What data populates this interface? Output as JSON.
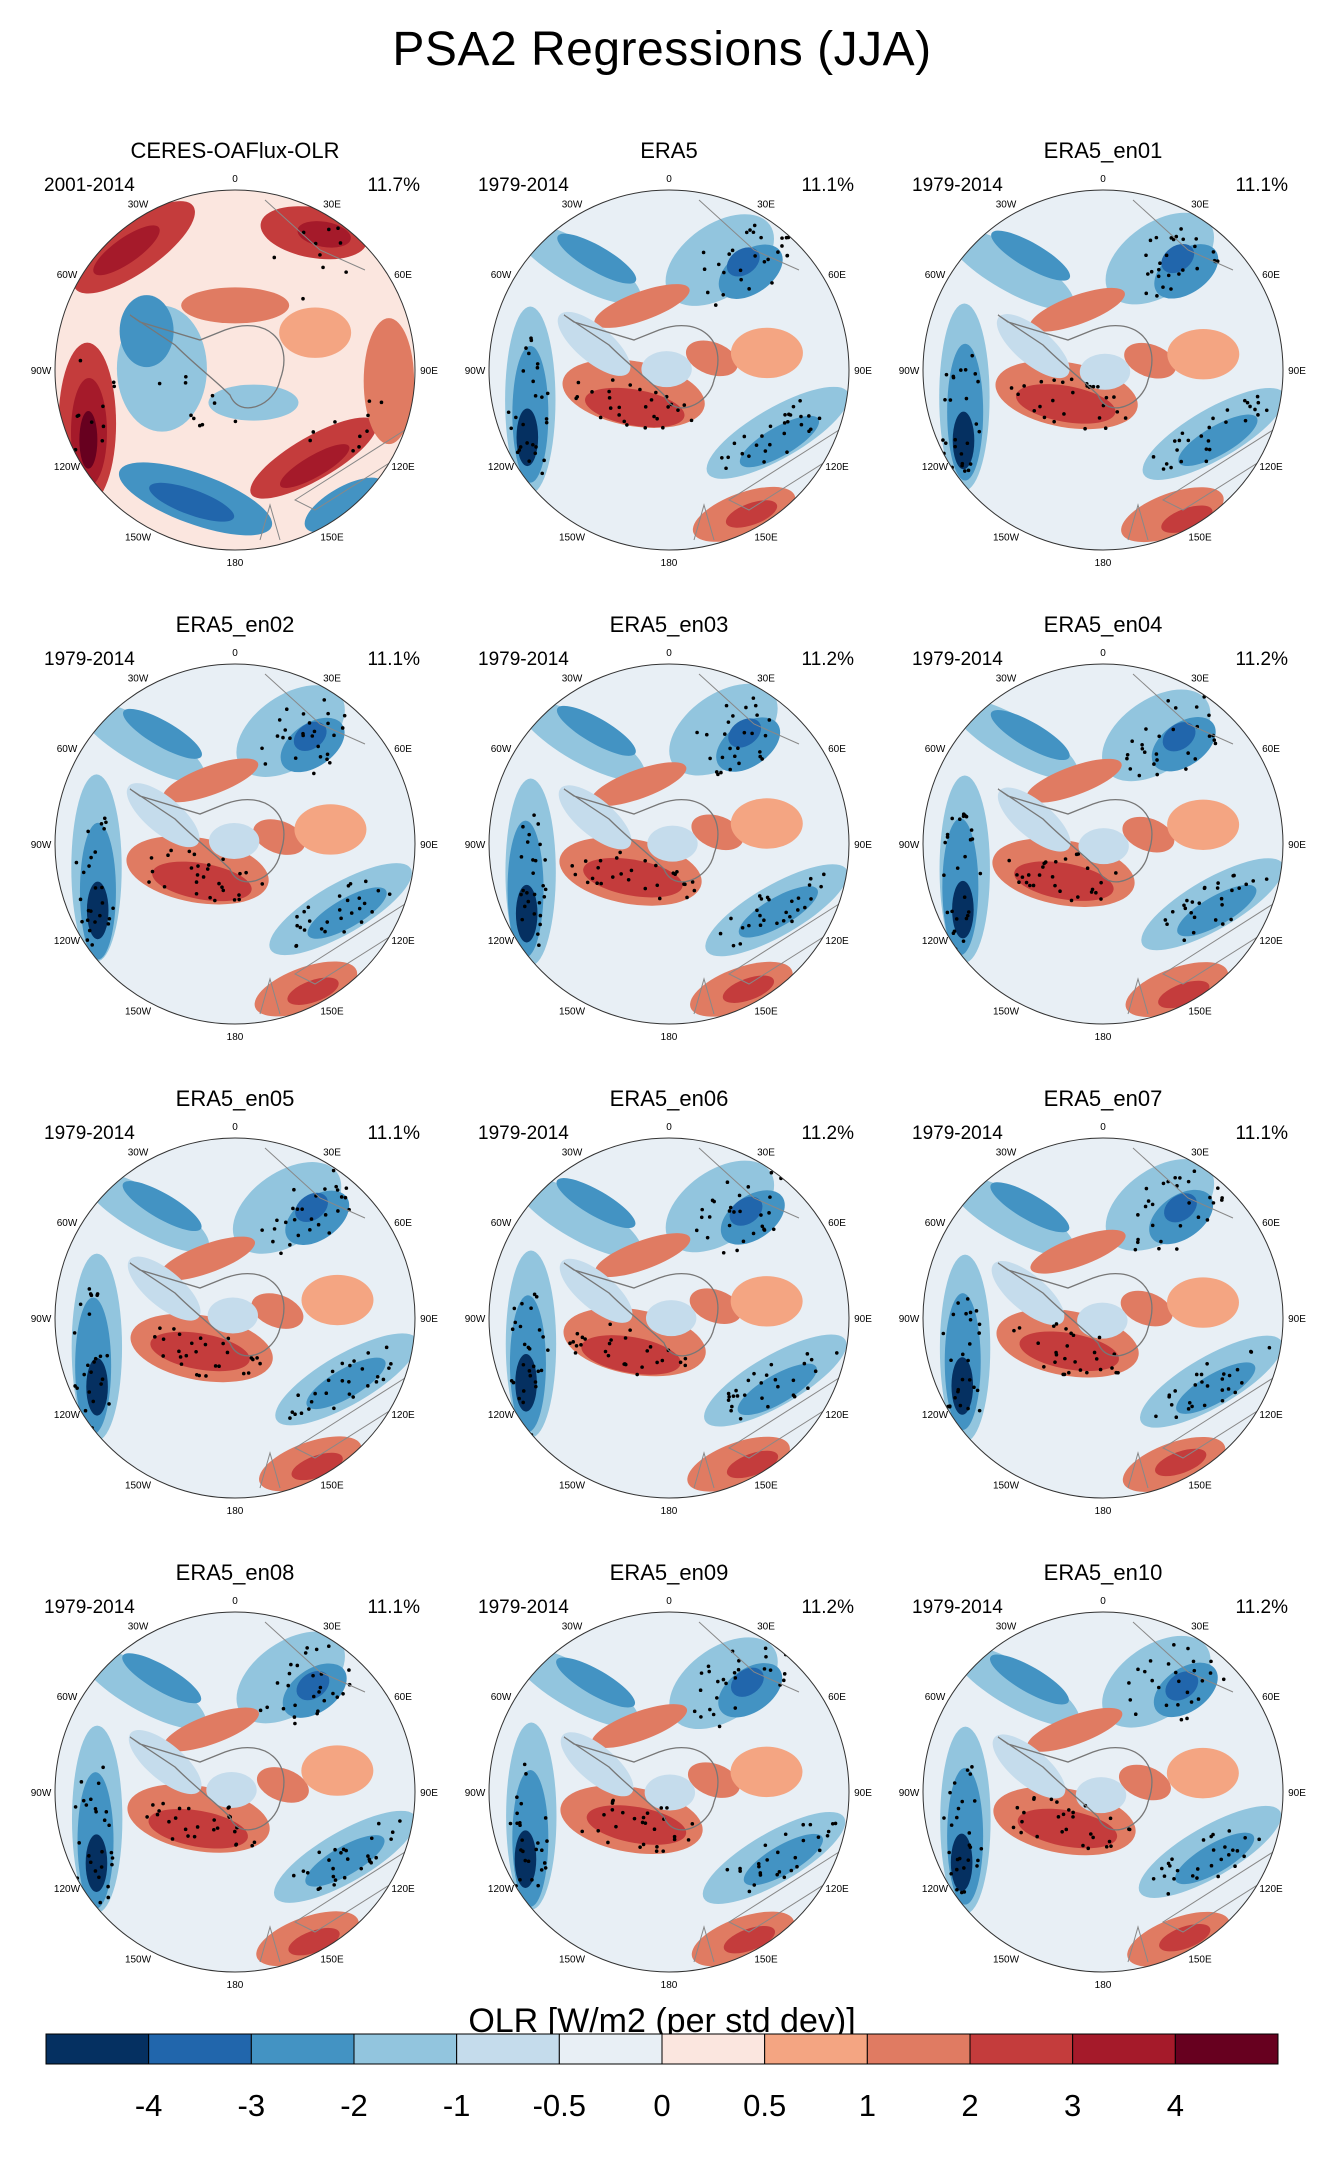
{
  "title": "PSA2 Regressions (JJA)",
  "lon_labels": [
    "0",
    "30E",
    "60E",
    "90E",
    "120E",
    "150E",
    "180",
    "150W",
    "120W",
    "90W",
    "60W",
    "30W"
  ],
  "panels": [
    {
      "name": "CERES-OAFlux-OLR",
      "period": "2001-2014",
      "variance": "11.7%"
    },
    {
      "name": "ERA5",
      "period": "1979-2014",
      "variance": "11.1%"
    },
    {
      "name": "ERA5_en01",
      "period": "1979-2014",
      "variance": "11.1%"
    },
    {
      "name": "ERA5_en02",
      "period": "1979-2014",
      "variance": "11.1%"
    },
    {
      "name": "ERA5_en03",
      "period": "1979-2014",
      "variance": "11.2%"
    },
    {
      "name": "ERA5_en04",
      "period": "1979-2014",
      "variance": "11.2%"
    },
    {
      "name": "ERA5_en05",
      "period": "1979-2014",
      "variance": "11.1%"
    },
    {
      "name": "ERA5_en06",
      "period": "1979-2014",
      "variance": "11.2%"
    },
    {
      "name": "ERA5_en07",
      "period": "1979-2014",
      "variance": "11.1%"
    },
    {
      "name": "ERA5_en08",
      "period": "1979-2014",
      "variance": "11.1%"
    },
    {
      "name": "ERA5_en09",
      "period": "1979-2014",
      "variance": "11.2%"
    },
    {
      "name": "ERA5_en10",
      "period": "1979-2014",
      "variance": "11.2%"
    }
  ],
  "colorbar": {
    "title": "OLR [W/m2 (per std dev)]",
    "labels": [
      "-4",
      "-3",
      "-2",
      "-1",
      "-0.5",
      "0",
      "0.5",
      "1",
      "2",
      "3",
      "4"
    ],
    "colors": [
      "#053061",
      "#2166ac",
      "#4393c3",
      "#92c5de",
      "#c5dcec",
      "#e8eff5",
      "#fbe6df",
      "#f4a582",
      "#e07b62",
      "#c43c3c",
      "#a51a2a",
      "#67001f"
    ]
  }
}
